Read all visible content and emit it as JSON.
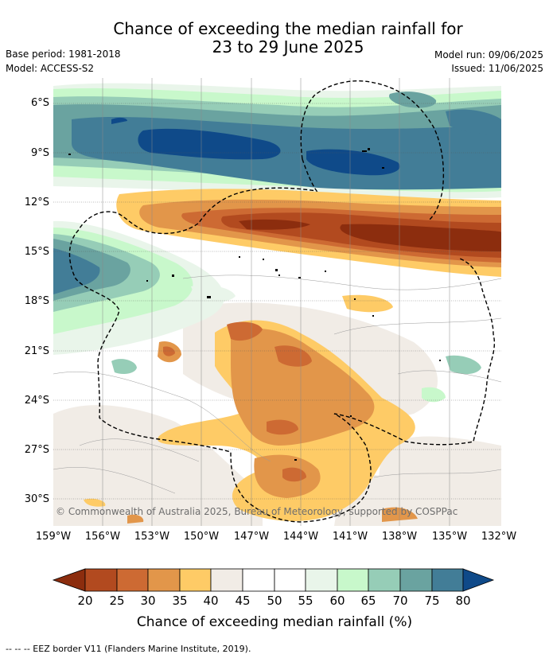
{
  "title": {
    "line1": "Chance of exceeding the median rainfall for",
    "line2": "23 to 29 June 2025"
  },
  "meta": {
    "base_period": "Base period: 1981-2018",
    "model": "Model: ACCESS-S2",
    "model_run": "Model run: 09/06/2025",
    "issued": "Issued: 11/06/2025"
  },
  "map": {
    "region": "South Pacific",
    "lat_labels": [
      "6°S",
      "9°S",
      "12°S",
      "15°S",
      "18°S",
      "21°S",
      "24°S",
      "27°S",
      "30°S"
    ],
    "lon_labels": [
      "159°W",
      "156°W",
      "153°W",
      "150°W",
      "147°W",
      "144°W",
      "141°W",
      "138°W",
      "135°W",
      "132°W"
    ],
    "copyright": "© Commonwealth of Australia 2025, Bureau of Meteorology, supported by COSPPac",
    "features": [
      "wet-band-north",
      "dry-band-12-15S",
      "dry-region-central-south",
      "eez-border"
    ]
  },
  "colorbar": {
    "title": "Chance of exceeding median rainfall (%)",
    "labels": [
      "20",
      "25",
      "30",
      "35",
      "40",
      "45",
      "50",
      "55",
      "60",
      "65",
      "70",
      "75",
      "80"
    ],
    "colors": [
      "#8c2d0e",
      "#b24a1f",
      "#cd6a33",
      "#e2964a",
      "#fecb66",
      "#f1ece6",
      "#ffffff",
      "#ffffff",
      "#e9f5ea",
      "#c8f8cb",
      "#96cdb7",
      "#6aa3a0",
      "#427d97",
      "#0f4a89"
    ]
  },
  "footnote": "-- -- -- EEZ border V11 (Flanders Marine Institute, 2019)."
}
